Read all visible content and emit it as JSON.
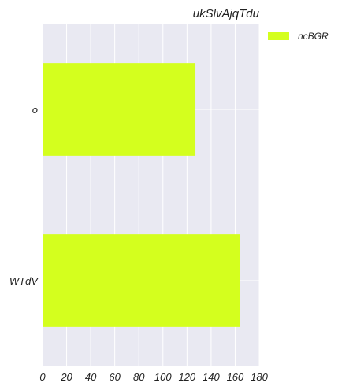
{
  "chart_data": {
    "type": "bar",
    "orientation": "horizontal",
    "title": "ukSlvAjqTdu",
    "categories": [
      "o",
      "WTdV"
    ],
    "series": [
      {
        "name": "ncBGR",
        "values": [
          127,
          164
        ]
      }
    ],
    "xlim": [
      0,
      180
    ],
    "xticks": [
      0,
      20,
      40,
      60,
      80,
      100,
      120,
      140,
      160,
      180
    ],
    "xlabel": "",
    "ylabel": "",
    "grid": true,
    "legend_position": "top-right-outside",
    "colors": {
      "bar": "#d4ff1e",
      "plot_bg": "#e9e9f2",
      "grid": "#ffffff",
      "text": "#222222"
    }
  }
}
